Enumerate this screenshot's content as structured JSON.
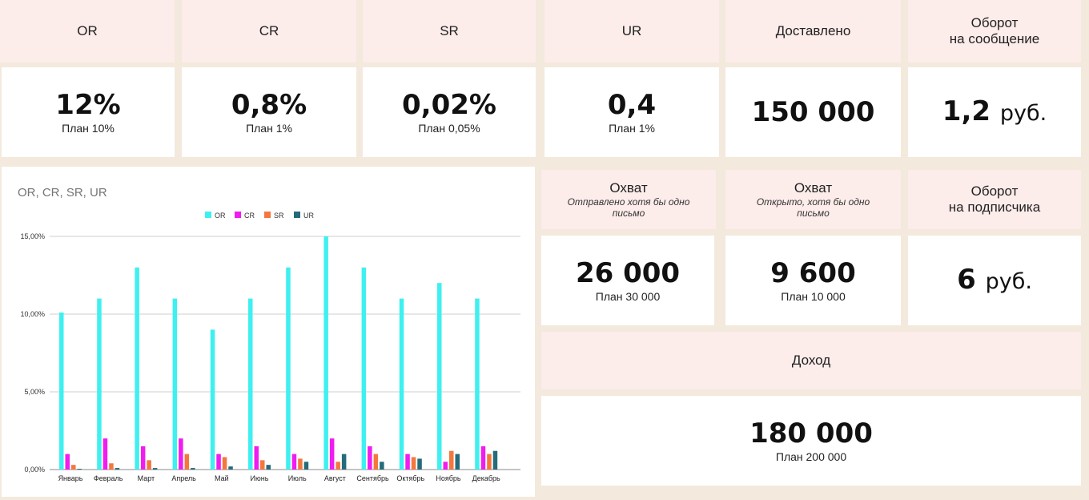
{
  "kpis": {
    "or": {
      "label": "OR",
      "value": "12%",
      "plan": "План 10%"
    },
    "cr": {
      "label": "CR",
      "value": "0,8%",
      "plan": "План 1%"
    },
    "sr": {
      "label": "SR",
      "value": "0,02%",
      "plan": "План 0,05%"
    },
    "ur": {
      "label": "UR",
      "value": "0,4",
      "plan": "План 1%"
    },
    "delivered": {
      "label": "Доставлено",
      "value": "150 000"
    },
    "turnover_msg": {
      "label_line1": "Оборот",
      "label_line2": "на сообщение",
      "value": "1,2",
      "unit": "руб."
    },
    "reach_sent": {
      "label": "Охват",
      "sub_line1": "Отправлено хотя бы одно",
      "sub_line2": "письмо",
      "value": "26 000",
      "plan": "План 30 000"
    },
    "reach_opened": {
      "label": "Охват",
      "sub_line1": "Открыто, хотя бы одно",
      "sub_line2": "письмо",
      "value": "9 600",
      "plan": "План 10 000"
    },
    "turnover_sub": {
      "label_line1": "Оборот",
      "label_line2": "на подписчика",
      "value": "6",
      "unit": "руб."
    },
    "income": {
      "label": "Доход",
      "value": "180 000",
      "plan": "План 200 000"
    }
  },
  "chart_data": {
    "type": "bar",
    "title": "OR, CR, SR, UR",
    "categories": [
      "Январь",
      "Февраль",
      "Март",
      "Апрель",
      "Май",
      "Июнь",
      "Июль",
      "Август",
      "Сентябрь",
      "Октябрь",
      "Ноябрь",
      "Декабрь"
    ],
    "series": [
      {
        "name": "OR",
        "color": "#3ff0f0",
        "values": [
          10.1,
          11,
          13,
          11,
          9,
          11,
          13,
          15,
          13,
          11,
          12,
          11
        ]
      },
      {
        "name": "CR",
        "color": "#f01cf0",
        "values": [
          1,
          2,
          1.5,
          2,
          1,
          1.5,
          1,
          2,
          1.5,
          1,
          0.5,
          1.5
        ]
      },
      {
        "name": "SR",
        "color": "#f5773d",
        "values": [
          0.3,
          0.4,
          0.6,
          1,
          0.8,
          0.6,
          0.7,
          0.5,
          1,
          0.8,
          1.2,
          1
        ]
      },
      {
        "name": "UR",
        "color": "#256b7a",
        "values": [
          0.05,
          0.1,
          0.1,
          0.1,
          0.2,
          0.3,
          0.5,
          1,
          0.5,
          0.7,
          1,
          1.2
        ]
      }
    ],
    "ylim": [
      0,
      15
    ],
    "yticks": [
      "0,00%",
      "5,00%",
      "10,00%",
      "15,00%"
    ],
    "legend": "top-center",
    "grid": true
  }
}
